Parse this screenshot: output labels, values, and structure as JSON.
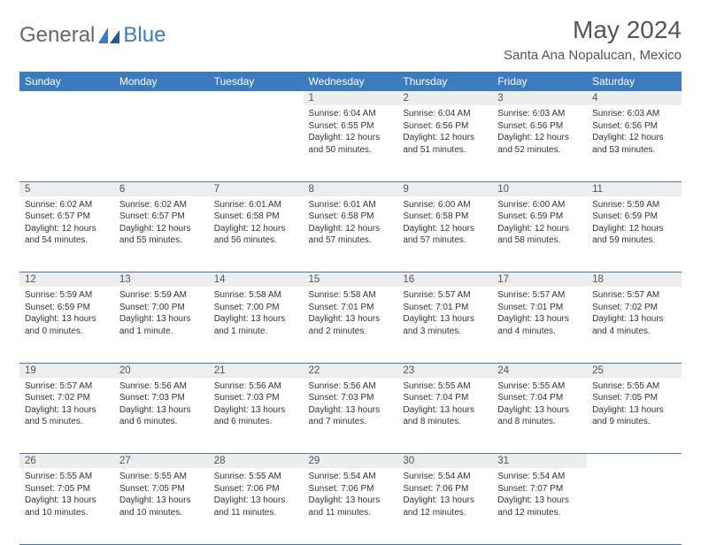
{
  "logo": {
    "text1": "General",
    "text2": "Blue"
  },
  "title": "May 2024",
  "location": "Santa Ana Nopalucan, Mexico",
  "colors": {
    "header_bg": "#3b7bbf",
    "header_fg": "#ffffff",
    "daynum_bg": "#eceded",
    "border": "#3b7bbf",
    "text": "#333333",
    "title": "#555555"
  },
  "daynames": [
    "Sunday",
    "Monday",
    "Tuesday",
    "Wednesday",
    "Thursday",
    "Friday",
    "Saturday"
  ],
  "weeks": [
    [
      null,
      null,
      null,
      {
        "n": "1",
        "sr": "6:04 AM",
        "ss": "6:55 PM",
        "dl": "12 hours and 50 minutes."
      },
      {
        "n": "2",
        "sr": "6:04 AM",
        "ss": "6:56 PM",
        "dl": "12 hours and 51 minutes."
      },
      {
        "n": "3",
        "sr": "6:03 AM",
        "ss": "6:56 PM",
        "dl": "12 hours and 52 minutes."
      },
      {
        "n": "4",
        "sr": "6:03 AM",
        "ss": "6:56 PM",
        "dl": "12 hours and 53 minutes."
      }
    ],
    [
      {
        "n": "5",
        "sr": "6:02 AM",
        "ss": "6:57 PM",
        "dl": "12 hours and 54 minutes."
      },
      {
        "n": "6",
        "sr": "6:02 AM",
        "ss": "6:57 PM",
        "dl": "12 hours and 55 minutes."
      },
      {
        "n": "7",
        "sr": "6:01 AM",
        "ss": "6:58 PM",
        "dl": "12 hours and 56 minutes."
      },
      {
        "n": "8",
        "sr": "6:01 AM",
        "ss": "6:58 PM",
        "dl": "12 hours and 57 minutes."
      },
      {
        "n": "9",
        "sr": "6:00 AM",
        "ss": "6:58 PM",
        "dl": "12 hours and 57 minutes."
      },
      {
        "n": "10",
        "sr": "6:00 AM",
        "ss": "6:59 PM",
        "dl": "12 hours and 58 minutes."
      },
      {
        "n": "11",
        "sr": "5:59 AM",
        "ss": "6:59 PM",
        "dl": "12 hours and 59 minutes."
      }
    ],
    [
      {
        "n": "12",
        "sr": "5:59 AM",
        "ss": "6:59 PM",
        "dl": "13 hours and 0 minutes."
      },
      {
        "n": "13",
        "sr": "5:59 AM",
        "ss": "7:00 PM",
        "dl": "13 hours and 1 minute."
      },
      {
        "n": "14",
        "sr": "5:58 AM",
        "ss": "7:00 PM",
        "dl": "13 hours and 1 minute."
      },
      {
        "n": "15",
        "sr": "5:58 AM",
        "ss": "7:01 PM",
        "dl": "13 hours and 2 minutes."
      },
      {
        "n": "16",
        "sr": "5:57 AM",
        "ss": "7:01 PM",
        "dl": "13 hours and 3 minutes."
      },
      {
        "n": "17",
        "sr": "5:57 AM",
        "ss": "7:01 PM",
        "dl": "13 hours and 4 minutes."
      },
      {
        "n": "18",
        "sr": "5:57 AM",
        "ss": "7:02 PM",
        "dl": "13 hours and 4 minutes."
      }
    ],
    [
      {
        "n": "19",
        "sr": "5:57 AM",
        "ss": "7:02 PM",
        "dl": "13 hours and 5 minutes."
      },
      {
        "n": "20",
        "sr": "5:56 AM",
        "ss": "7:03 PM",
        "dl": "13 hours and 6 minutes."
      },
      {
        "n": "21",
        "sr": "5:56 AM",
        "ss": "7:03 PM",
        "dl": "13 hours and 6 minutes."
      },
      {
        "n": "22",
        "sr": "5:56 AM",
        "ss": "7:03 PM",
        "dl": "13 hours and 7 minutes."
      },
      {
        "n": "23",
        "sr": "5:55 AM",
        "ss": "7:04 PM",
        "dl": "13 hours and 8 minutes."
      },
      {
        "n": "24",
        "sr": "5:55 AM",
        "ss": "7:04 PM",
        "dl": "13 hours and 8 minutes."
      },
      {
        "n": "25",
        "sr": "5:55 AM",
        "ss": "7:05 PM",
        "dl": "13 hours and 9 minutes."
      }
    ],
    [
      {
        "n": "26",
        "sr": "5:55 AM",
        "ss": "7:05 PM",
        "dl": "13 hours and 10 minutes."
      },
      {
        "n": "27",
        "sr": "5:55 AM",
        "ss": "7:05 PM",
        "dl": "13 hours and 10 minutes."
      },
      {
        "n": "28",
        "sr": "5:55 AM",
        "ss": "7:06 PM",
        "dl": "13 hours and 11 minutes."
      },
      {
        "n": "29",
        "sr": "5:54 AM",
        "ss": "7:06 PM",
        "dl": "13 hours and 11 minutes."
      },
      {
        "n": "30",
        "sr": "5:54 AM",
        "ss": "7:06 PM",
        "dl": "13 hours and 12 minutes."
      },
      {
        "n": "31",
        "sr": "5:54 AM",
        "ss": "7:07 PM",
        "dl": "13 hours and 12 minutes."
      },
      null
    ]
  ],
  "labels": {
    "sunrise": "Sunrise:",
    "sunset": "Sunset:",
    "daylight": "Daylight:"
  }
}
